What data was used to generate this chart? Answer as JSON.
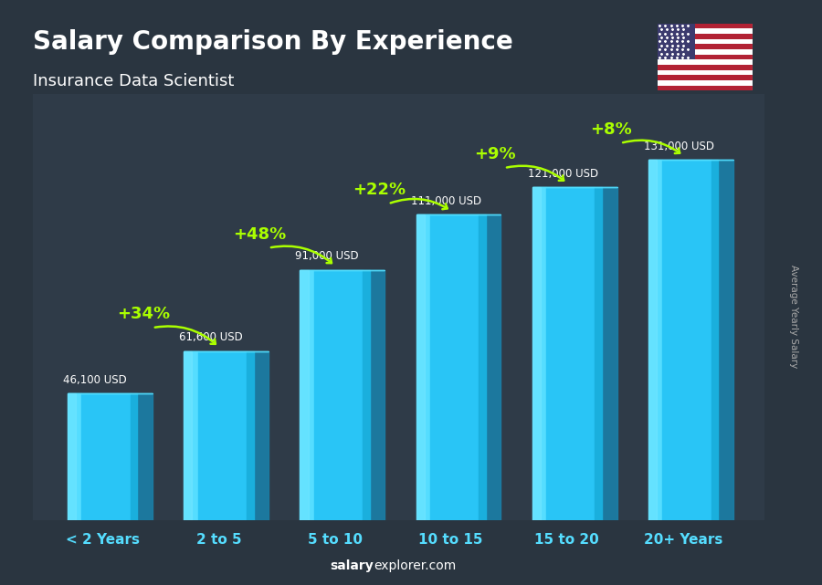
{
  "title": "Salary Comparison By Experience",
  "subtitle": "Insurance Data Scientist",
  "categories": [
    "< 2 Years",
    "2 to 5",
    "5 to 10",
    "10 to 15",
    "15 to 20",
    "20+ Years"
  ],
  "values": [
    46100,
    61600,
    91000,
    111000,
    121000,
    131000
  ],
  "labels": [
    "46,100 USD",
    "61,600 USD",
    "91,000 USD",
    "111,000 USD",
    "121,000 USD",
    "131,000 USD"
  ],
  "pct_changes": [
    "+34%",
    "+48%",
    "+22%",
    "+9%",
    "+8%"
  ],
  "bar_face_color": "#29c5f6",
  "bar_left_color": "#0090c0",
  "bar_right_color": "#007aaa",
  "bar_top_color": "#50d8ff",
  "bg_color": "#2a3540",
  "title_color": "#ffffff",
  "subtitle_color": "#ffffff",
  "label_color": "#ffffff",
  "pct_color": "#aaff00",
  "footer_salary_color": "#ffffff",
  "footer_explorer_color": "#aaddff",
  "ylabel": "Average Yearly Salary",
  "ylim_max": 155000,
  "bar_width": 0.6
}
